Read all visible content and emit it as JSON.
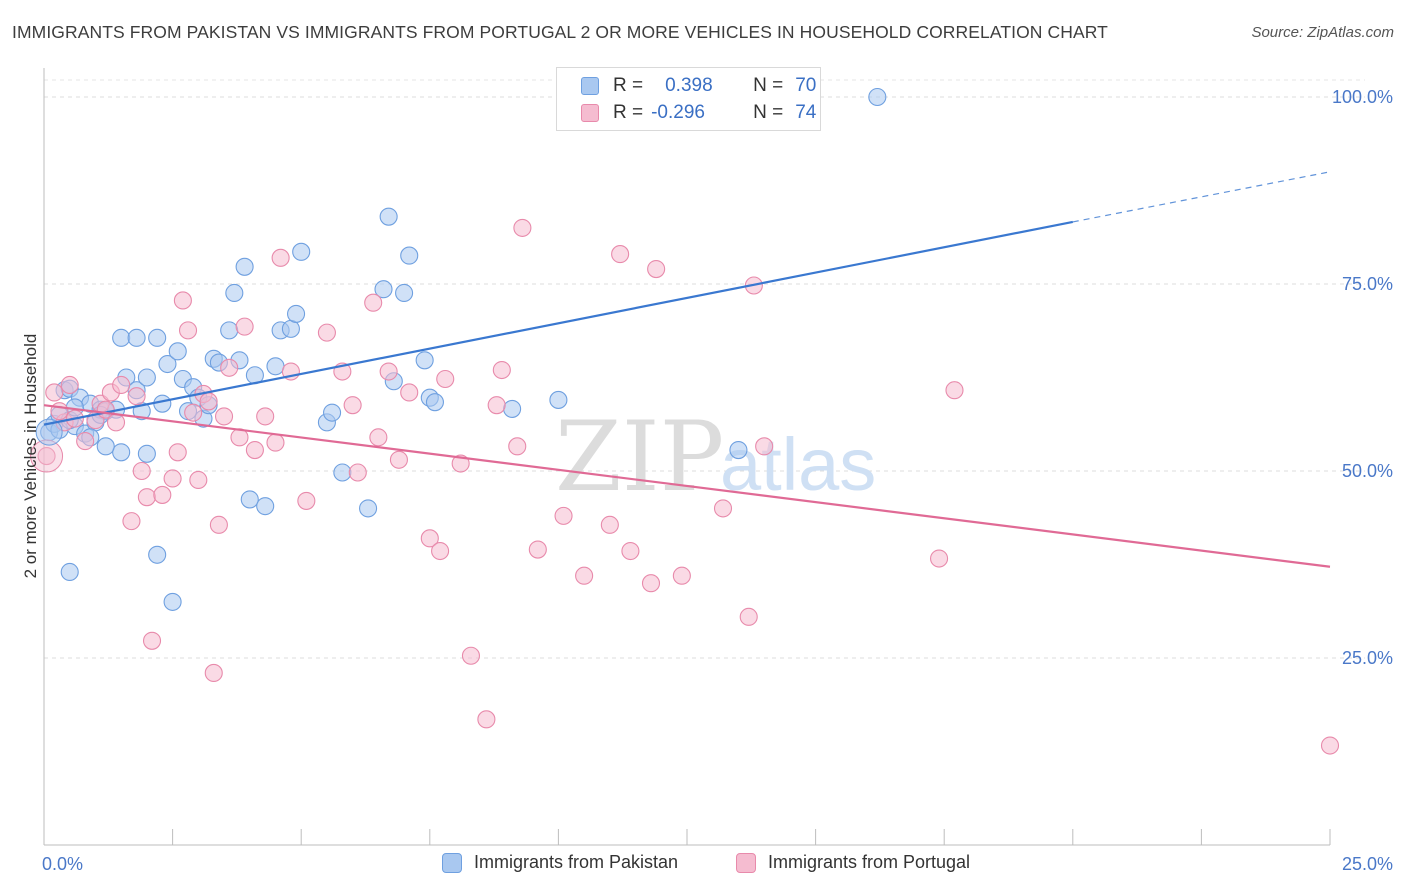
{
  "title": "IMMIGRANTS FROM PAKISTAN VS IMMIGRANTS FROM PORTUGAL 2 OR MORE VEHICLES IN HOUSEHOLD CORRELATION CHART",
  "source": "Source: ZipAtlas.com",
  "watermark": "ZIPatlas",
  "stats": [
    {
      "r_label": "R =",
      "r_value": "0.398",
      "n_label": "N =",
      "n_value": "70",
      "color": "#a9c8f0",
      "border": "#6fa0e0"
    },
    {
      "r_label": "R =",
      "r_value": "-0.296",
      "n_label": "N =",
      "n_value": "74",
      "color": "#f5bcd0",
      "border": "#e88aab"
    }
  ],
  "legend": [
    {
      "label": "Immigrants from Pakistan",
      "color": "#a9c8f0",
      "border": "#6fa0e0"
    },
    {
      "label": "Immigrants from Portugal",
      "color": "#f5bcd0",
      "border": "#e88aab"
    }
  ],
  "chart_data": {
    "type": "scatter",
    "ylabel": "2 or more Vehicles in Household",
    "xlim": [
      0,
      25
    ],
    "ylim": [
      0,
      100
    ],
    "x_tick_labels": [
      "0.0%",
      "25.0%"
    ],
    "y_tick_labels": [
      "25.0%",
      "50.0%",
      "75.0%",
      "100.0%"
    ],
    "y_ticks": [
      25,
      50,
      75,
      100
    ],
    "grid": "horizontal dashed",
    "series": [
      {
        "name": "Immigrants from Pakistan",
        "color": "#6fa0e0",
        "fill": "#a9c8f0",
        "trend": {
          "x0": 0,
          "y0": 56.2,
          "x1": 20.0,
          "y1": 83.3,
          "dash_to_x": 25,
          "dash_to_y": 90.0,
          "color": "#3a78d0"
        },
        "points": [
          [
            0.1,
            55.2
          ],
          [
            0.2,
            56.3
          ],
          [
            0.3,
            57.5
          ],
          [
            0.4,
            60.8
          ],
          [
            0.5,
            61.0
          ],
          [
            0.6,
            56.0
          ],
          [
            0.7,
            59.8
          ],
          [
            0.8,
            55.0
          ],
          [
            0.9,
            59.0
          ],
          [
            1.0,
            56.5
          ],
          [
            1.1,
            58.2
          ],
          [
            1.2,
            58.0
          ],
          [
            1.5,
            52.5
          ],
          [
            1.6,
            62.5
          ],
          [
            1.8,
            60.8
          ],
          [
            1.9,
            58.0
          ],
          [
            2.0,
            62.5
          ],
          [
            2.2,
            67.8
          ],
          [
            2.3,
            59.0
          ],
          [
            2.4,
            64.3
          ],
          [
            2.6,
            66.0
          ],
          [
            2.7,
            62.3
          ],
          [
            2.8,
            58.0
          ],
          [
            2.9,
            61.2
          ],
          [
            3.0,
            59.8
          ],
          [
            3.1,
            57.0
          ],
          [
            3.2,
            58.8
          ],
          [
            3.3,
            65.0
          ],
          [
            3.4,
            64.5
          ],
          [
            3.6,
            68.8
          ],
          [
            3.7,
            73.8
          ],
          [
            3.8,
            64.8
          ],
          [
            3.9,
            77.3
          ],
          [
            4.0,
            46.2
          ],
          [
            4.1,
            62.8
          ],
          [
            4.3,
            45.3
          ],
          [
            4.5,
            64.0
          ],
          [
            4.6,
            68.8
          ],
          [
            4.8,
            69.0
          ],
          [
            4.9,
            71.0
          ],
          [
            5.0,
            79.3
          ],
          [
            5.5,
            56.5
          ],
          [
            5.6,
            57.8
          ],
          [
            5.8,
            49.8
          ],
          [
            6.3,
            45.0
          ],
          [
            6.6,
            74.3
          ],
          [
            6.7,
            84.0
          ],
          [
            6.8,
            62.0
          ],
          [
            7.0,
            73.8
          ],
          [
            7.1,
            78.8
          ],
          [
            7.4,
            64.8
          ],
          [
            7.5,
            59.8
          ],
          [
            7.6,
            59.2
          ],
          [
            9.1,
            58.3
          ],
          [
            10.0,
            59.5
          ],
          [
            13.5,
            52.8
          ],
          [
            16.2,
            100.0
          ],
          [
            1.5,
            67.8
          ],
          [
            1.8,
            67.8
          ],
          [
            2.0,
            52.3
          ],
          [
            0.3,
            55.5
          ],
          [
            0.5,
            56.8
          ],
          [
            1.1,
            57.5
          ],
          [
            1.4,
            58.2
          ],
          [
            2.2,
            38.8
          ],
          [
            0.5,
            36.5
          ],
          [
            2.5,
            32.5
          ],
          [
            1.2,
            53.3
          ],
          [
            0.6,
            58.5
          ],
          [
            0.9,
            54.5
          ]
        ]
      },
      {
        "name": "Immigrants from Portugal",
        "color": "#e88aab",
        "fill": "#f5bcd0",
        "trend": {
          "x0": 0,
          "y0": 58.8,
          "x1": 25,
          "y1": 37.2,
          "color": "#e06a95"
        },
        "points": [
          [
            0.05,
            52.0
          ],
          [
            0.2,
            60.5
          ],
          [
            0.4,
            56.5
          ],
          [
            0.5,
            61.5
          ],
          [
            0.6,
            57.0
          ],
          [
            0.8,
            54.0
          ],
          [
            1.0,
            56.8
          ],
          [
            1.1,
            59.0
          ],
          [
            1.2,
            58.2
          ],
          [
            1.3,
            60.5
          ],
          [
            1.4,
            56.5
          ],
          [
            1.5,
            61.5
          ],
          [
            1.7,
            43.3
          ],
          [
            1.9,
            50.0
          ],
          [
            2.0,
            46.5
          ],
          [
            2.1,
            27.3
          ],
          [
            2.3,
            46.8
          ],
          [
            2.5,
            49.0
          ],
          [
            2.6,
            52.5
          ],
          [
            2.7,
            72.8
          ],
          [
            2.8,
            68.8
          ],
          [
            3.0,
            48.8
          ],
          [
            3.1,
            60.3
          ],
          [
            3.3,
            23.0
          ],
          [
            3.4,
            42.8
          ],
          [
            3.5,
            57.3
          ],
          [
            3.6,
            63.8
          ],
          [
            3.8,
            54.5
          ],
          [
            3.9,
            69.3
          ],
          [
            4.1,
            52.8
          ],
          [
            4.3,
            57.3
          ],
          [
            4.5,
            53.8
          ],
          [
            4.6,
            78.5
          ],
          [
            4.8,
            63.3
          ],
          [
            5.1,
            46.0
          ],
          [
            5.5,
            68.5
          ],
          [
            5.8,
            63.3
          ],
          [
            6.0,
            58.8
          ],
          [
            6.1,
            49.8
          ],
          [
            6.4,
            72.5
          ],
          [
            6.5,
            54.5
          ],
          [
            6.7,
            63.3
          ],
          [
            6.9,
            51.5
          ],
          [
            7.1,
            60.5
          ],
          [
            7.5,
            41.0
          ],
          [
            7.7,
            39.3
          ],
          [
            7.8,
            62.3
          ],
          [
            8.1,
            51.0
          ],
          [
            8.3,
            25.3
          ],
          [
            8.6,
            16.8
          ],
          [
            8.8,
            58.8
          ],
          [
            8.9,
            63.5
          ],
          [
            9.2,
            53.3
          ],
          [
            9.3,
            82.5
          ],
          [
            9.6,
            39.5
          ],
          [
            10.1,
            44.0
          ],
          [
            10.5,
            36.0
          ],
          [
            11.0,
            42.8
          ],
          [
            11.2,
            79.0
          ],
          [
            11.4,
            39.3
          ],
          [
            11.8,
            35.0
          ],
          [
            11.9,
            77.0
          ],
          [
            12.4,
            36.0
          ],
          [
            13.2,
            45.0
          ],
          [
            13.7,
            30.5
          ],
          [
            13.8,
            74.8
          ],
          [
            14.0,
            53.3
          ],
          [
            17.4,
            38.3
          ],
          [
            17.7,
            60.8
          ],
          [
            25.0,
            13.3
          ],
          [
            2.9,
            57.8
          ],
          [
            1.8,
            60.0
          ],
          [
            0.3,
            58.0
          ],
          [
            3.2,
            59.3
          ]
        ]
      }
    ]
  }
}
